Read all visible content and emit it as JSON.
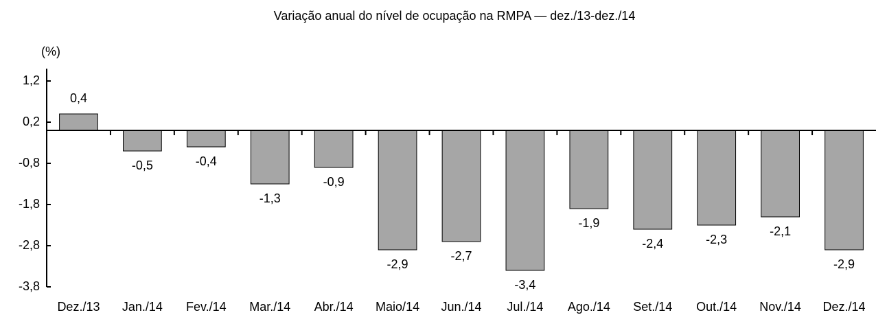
{
  "chart_data": {
    "type": "bar",
    "title": "Variação anual do nível de ocupação na RMPA — dez./13-dez./14",
    "y_label": "(%)",
    "categories": [
      "Dez./13",
      "Jan./14",
      "Fev./14",
      "Mar./14",
      "Abr./14",
      "Maio/14",
      "Jun./14",
      "Jul./14",
      "Ago./14",
      "Set./14",
      "Out./14",
      "Nov./14",
      "Dez./14"
    ],
    "values": [
      0.4,
      -0.5,
      -0.4,
      -1.3,
      -0.9,
      -2.9,
      -2.7,
      -3.4,
      -1.9,
      -2.4,
      -2.3,
      -2.1,
      -2.9
    ],
    "value_labels": [
      "0,4",
      "-0,5",
      "-0,4",
      "-1,3",
      "-0,9",
      "-2,9",
      "-2,7",
      "-3,4",
      "-1,9",
      "-2,4",
      "-2,3",
      "-2,1",
      "-2,9"
    ],
    "color": "#a6a6a6",
    "ylim": [
      -3.8,
      1.5
    ],
    "yticks": [
      {
        "value": 1.2,
        "label": "1,2"
      },
      {
        "value": 0.2,
        "label": "0,2"
      },
      {
        "value": -0.8,
        "label": "-0,8"
      },
      {
        "value": -1.8,
        "label": "-1,8"
      },
      {
        "value": -2.8,
        "label": "-2,8"
      },
      {
        "value": -3.8,
        "label": "-3,8"
      }
    ],
    "grid": false
  }
}
